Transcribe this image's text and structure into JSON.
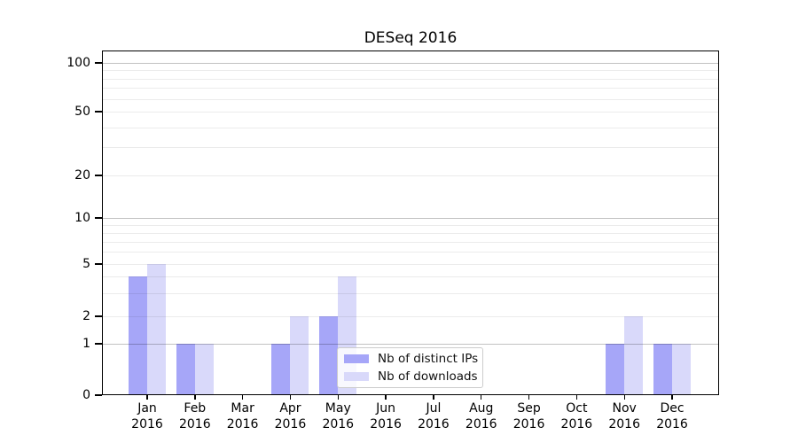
{
  "title": "DESeq 2016",
  "y_axis": {
    "tick_values": [
      100,
      50,
      20,
      10,
      5,
      2,
      1,
      0
    ],
    "tick_labels": [
      "100",
      "50",
      "20",
      "10",
      "5",
      "2",
      "1",
      "0"
    ]
  },
  "x_axis": {
    "months": [
      "Jan",
      "Feb",
      "Mar",
      "Apr",
      "May",
      "Jun",
      "Jul",
      "Aug",
      "Sep",
      "Oct",
      "Nov",
      "Dec"
    ],
    "year": "2016"
  },
  "legend": {
    "items": [
      {
        "label": "Nb of distinct IPs",
        "color": "#a6a6f8"
      },
      {
        "label": "Nb of downloads",
        "color": "#d9d9fa"
      }
    ]
  },
  "chart_data": {
    "type": "bar",
    "title": "DESeq 2016",
    "categories": [
      "Jan 2016",
      "Feb 2016",
      "Mar 2016",
      "Apr 2016",
      "May 2016",
      "Jun 2016",
      "Jul 2016",
      "Aug 2016",
      "Sep 2016",
      "Oct 2016",
      "Nov 2016",
      "Dec 2016"
    ],
    "series": [
      {
        "name": "Nb of distinct IPs",
        "color": "#a6a6f8",
        "values": [
          4,
          1,
          0,
          1,
          2,
          0,
          0,
          0,
          0,
          0,
          1,
          1
        ]
      },
      {
        "name": "Nb of downloads",
        "color": "#d9d9fa",
        "values": [
          5,
          1,
          0,
          2,
          4,
          0,
          0,
          0,
          0,
          0,
          2,
          1
        ]
      }
    ],
    "yscale": "log-like",
    "ylim": [
      0,
      100
    ],
    "yticks_labeled": [
      0,
      1,
      2,
      5,
      10,
      20,
      50,
      100
    ],
    "yticks_major_grid": [
      1,
      10,
      100
    ],
    "yticks_minor_grid": [
      2,
      3,
      4,
      5,
      6,
      7,
      8,
      9,
      20,
      30,
      40,
      50,
      60,
      70,
      80,
      90
    ],
    "grid": true,
    "legend_position": "inside-bottom-center"
  }
}
